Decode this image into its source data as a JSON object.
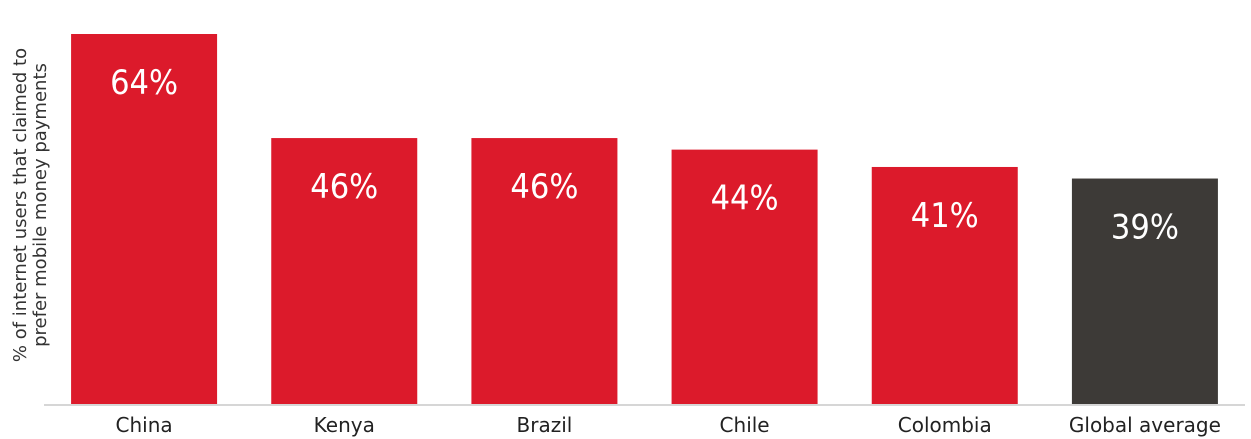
{
  "chart_data": {
    "type": "bar",
    "categories": [
      "China",
      "Kenya",
      "Brazil",
      "Chile",
      "Colombia",
      "Global average"
    ],
    "values": [
      64,
      46,
      46,
      44,
      41,
      39
    ],
    "data_labels": [
      "64%",
      "46%",
      "46%",
      "44%",
      "41%",
      "39%"
    ],
    "ylabel_lines": [
      "% of internet users that claimed to",
      "prefer mobile money payments"
    ],
    "ylim": [
      0,
      64
    ],
    "grid": false,
    "colors": {
      "bar": "#dc1a2b",
      "highlight_bar": "#3d3a37",
      "baseline": "#c8c8c8"
    },
    "highlight_index": 5
  }
}
